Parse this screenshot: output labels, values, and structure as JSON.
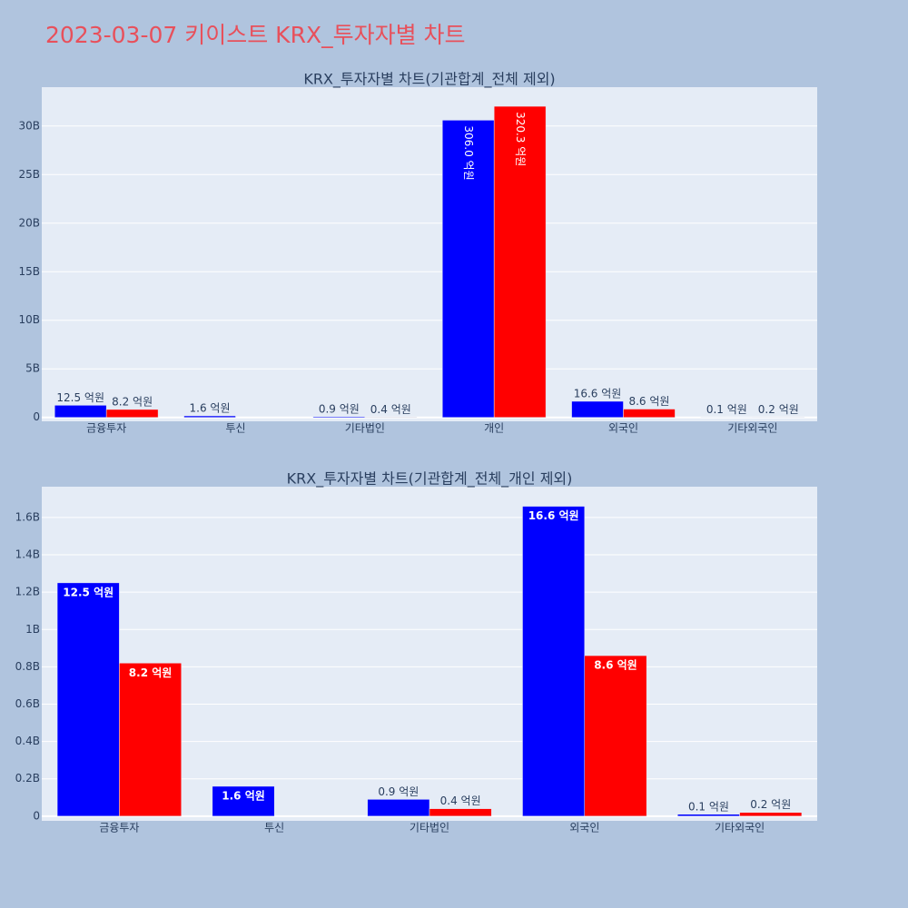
{
  "title": "2023-03-07 키이스트 KRX_투자자별 차트",
  "chart_data": [
    {
      "type": "bar",
      "title": "KRX_투자자별 차트(기관합계_전체 제외)",
      "categories": [
        "금융투자",
        "투신",
        "기타법인",
        "개인",
        "외국인",
        "기타외국인"
      ],
      "series": [
        {
          "color": "#0000ff",
          "values": [
            1250000000,
            160000000,
            90000000,
            30600000000,
            1660000000,
            10000000
          ],
          "value_labels": [
            "12.5 억원",
            "1.6 억원",
            "0.9 억원",
            "306.0 억원",
            "16.6 억원",
            "0.1 억원"
          ]
        },
        {
          "color": "#ff0000",
          "values": [
            820000000,
            null,
            40000000,
            32030000000,
            860000000,
            20000000
          ],
          "value_labels": [
            "8.2 억원",
            null,
            "0.4 억원",
            "320.3 억원",
            "8.6 억원",
            "0.2 억원"
          ]
        }
      ],
      "ylim": [
        -400000000,
        34000000000
      ],
      "yticks": [
        0,
        {
          "value": 5000000000,
          "label": "5B"
        },
        {
          "value": 10000000000,
          "label": "10B"
        },
        {
          "value": 15000000000,
          "label": "15B"
        },
        {
          "value": 20000000000,
          "label": "20B"
        },
        {
          "value": 25000000000,
          "label": "25B"
        },
        {
          "value": 30000000000,
          "label": "30B"
        }
      ],
      "grid": true
    },
    {
      "type": "bar",
      "title": "KRX_투자자별 차트(기관합계_전체_개인 제외)",
      "categories": [
        "금융투자",
        "투신",
        "기타법인",
        "외국인",
        "기타외국인"
      ],
      "series": [
        {
          "color": "#0000ff",
          "values": [
            1250000000,
            160000000,
            90000000,
            1660000000,
            10000000
          ],
          "value_labels": [
            "12.5 억원",
            "1.6 억원",
            "0.9 억원",
            "16.6 억원",
            "0.1 억원"
          ]
        },
        {
          "color": "#ff0000",
          "values": [
            820000000,
            null,
            40000000,
            860000000,
            20000000
          ],
          "value_labels": [
            "8.2 억원",
            null,
            "0.4 억원",
            "8.6 억원",
            "0.2 억원"
          ]
        }
      ],
      "ylim": [
        -25000000,
        1765000000
      ],
      "yticks": [
        0,
        {
          "value": 200000000,
          "label": "0.2B"
        },
        {
          "value": 400000000,
          "label": "0.4B"
        },
        {
          "value": 600000000,
          "label": "0.6B"
        },
        {
          "value": 800000000,
          "label": "0.8B"
        },
        {
          "value": 1000000000,
          "label": "1B"
        },
        {
          "value": 1200000000,
          "label": "1.2B"
        },
        {
          "value": 1400000000,
          "label": "1.4B"
        },
        {
          "value": 1600000000,
          "label": "1.6B"
        }
      ],
      "grid": true
    }
  ]
}
